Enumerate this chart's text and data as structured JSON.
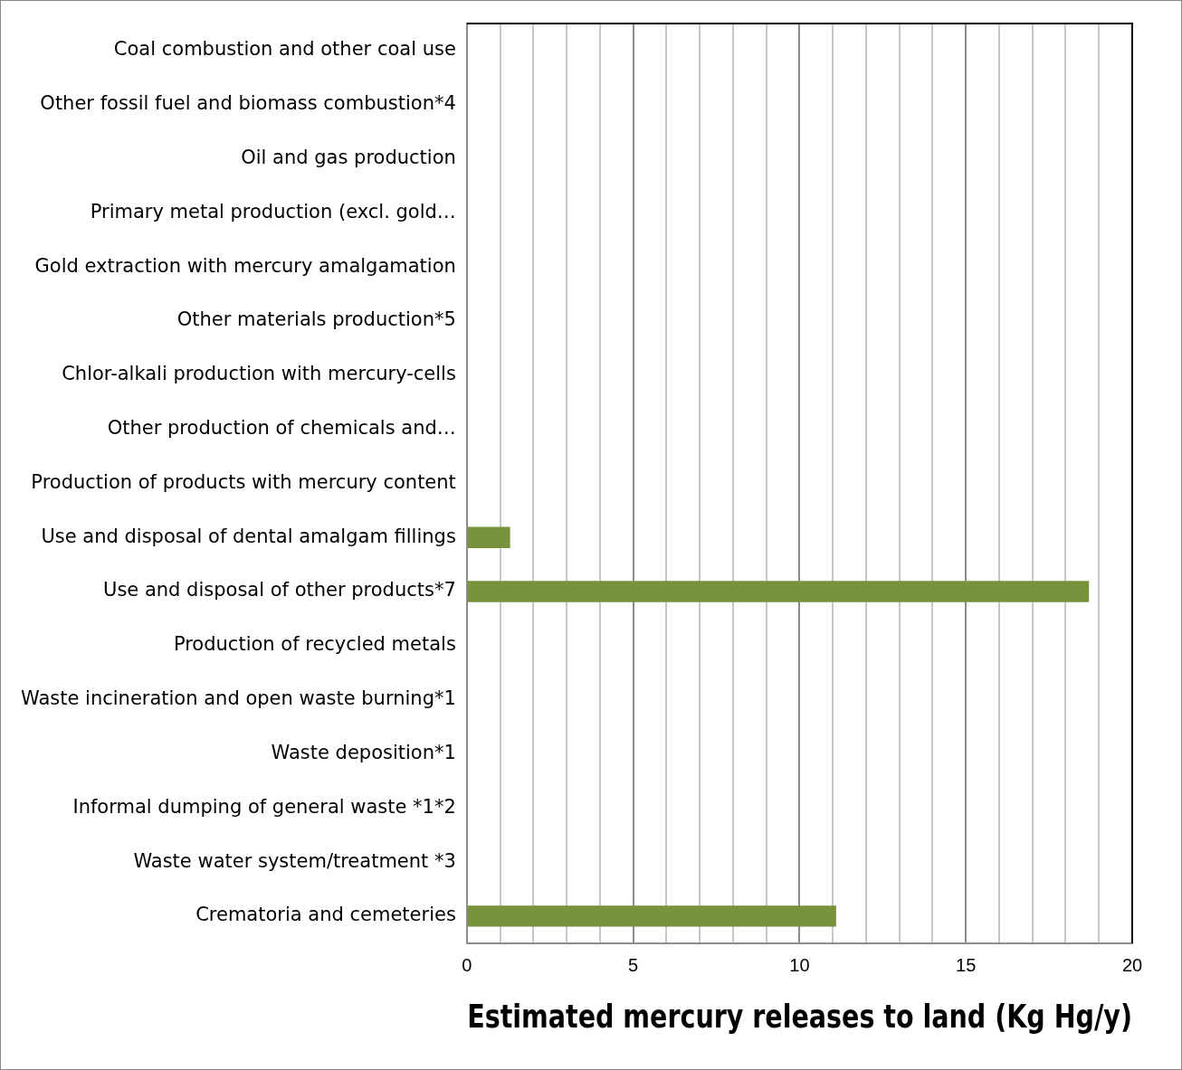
{
  "chart_data": {
    "type": "bar",
    "orientation": "horizontal",
    "xlabel": "Estimated mercury releases to land (Kg Hg/y)",
    "categories": [
      "Coal combustion and other coal use",
      "Other fossil fuel and biomass combustion*4",
      "Oil and gas production",
      "Primary metal production (excl. gold…",
      "Gold extraction with mercury amalgamation",
      "Other materials production*5",
      "Chlor-alkali production with mercury-cells",
      "Other production of chemicals and…",
      "Production of products with mercury content",
      "Use and disposal of dental amalgam fillings",
      "Use and disposal of other products*7",
      "Production of recycled metals",
      "Waste incineration and open waste burning*1",
      "Waste deposition*1",
      "Informal dumping of general waste *1*2",
      "Waste water system/treatment *3",
      "Crematoria and cemeteries"
    ],
    "values": [
      null,
      null,
      null,
      null,
      null,
      null,
      null,
      null,
      null,
      1.3,
      18.7,
      null,
      null,
      null,
      null,
      null,
      11.1
    ],
    "color": "#77933c",
    "xlim": [
      0,
      20
    ],
    "xticks": [
      0,
      {
        "value": 1,
        "label": null
      },
      {
        "value": 2,
        "label": null
      },
      {
        "value": 3,
        "label": null
      },
      {
        "value": 4,
        "label": null
      },
      5,
      {
        "value": 6,
        "label": null
      },
      {
        "value": 7,
        "label": null
      },
      {
        "value": 8,
        "label": null
      },
      {
        "value": 9,
        "label": null
      },
      10,
      {
        "value": 11,
        "label": null
      },
      {
        "value": 12,
        "label": null
      },
      {
        "value": 13,
        "label": null
      },
      {
        "value": 14,
        "label": null
      },
      15,
      {
        "value": 16,
        "label": null
      },
      {
        "value": 17,
        "label": null
      },
      {
        "value": 18,
        "label": null
      },
      {
        "value": 19,
        "label": null
      },
      20
    ],
    "grid": "x",
    "legend": false
  }
}
